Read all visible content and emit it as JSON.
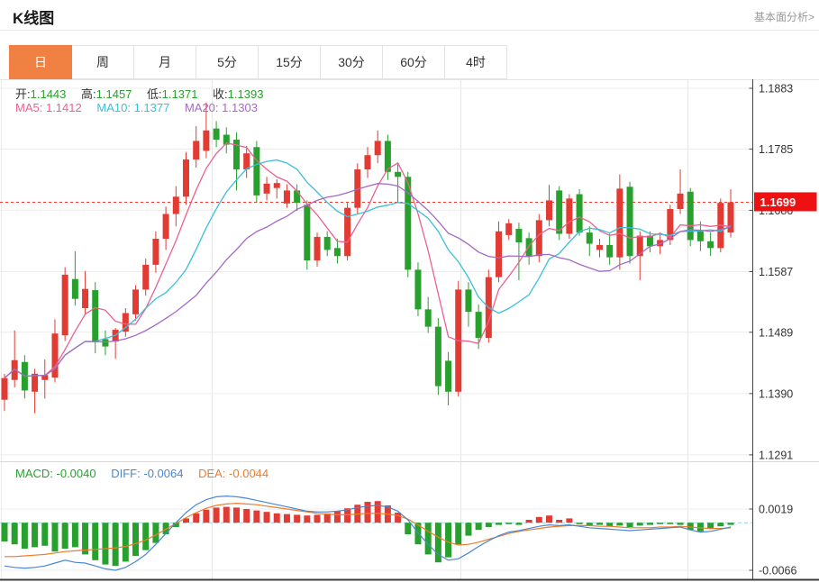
{
  "header": {
    "title": "K线图",
    "link_label": "基本面分析>"
  },
  "tabs": {
    "items": [
      {
        "label": "日",
        "active": true
      },
      {
        "label": "周",
        "active": false
      },
      {
        "label": "月",
        "active": false
      },
      {
        "label": "5分",
        "active": false
      },
      {
        "label": "15分",
        "active": false
      },
      {
        "label": "30分",
        "active": false
      },
      {
        "label": "60分",
        "active": false
      },
      {
        "label": "4时",
        "active": false
      }
    ]
  },
  "legend": {
    "ohlc": [
      {
        "label": "开:",
        "value": "1.1443"
      },
      {
        "label": "高:",
        "value": "1.1457"
      },
      {
        "label": "低:",
        "value": "1.1371"
      },
      {
        "label": "收:",
        "value": "1.1393"
      }
    ],
    "ma": [
      {
        "label": "MA5:",
        "value": "1.1412"
      },
      {
        "label": "MA10:",
        "value": "1.1377"
      },
      {
        "label": "MA20:",
        "value": "1.1303"
      }
    ],
    "macd": [
      {
        "label": "MACD:",
        "value": "-0.0040"
      },
      {
        "label": "DIFF:",
        "value": "-0.0064"
      },
      {
        "label": "DEA:",
        "value": "-0.0044"
      }
    ]
  },
  "chart_data": {
    "type": "candlestick+macd",
    "legend_position": "top-left",
    "grid": true,
    "price_axis": {
      "ticks": [
        1.1883,
        1.1785,
        1.1686,
        1.1587,
        1.1489,
        1.139,
        1.1291
      ],
      "labels": [
        "1.1883",
        "1.1785",
        "1.1686",
        "1.1587",
        "1.1489",
        "1.1390",
        "1.1291"
      ]
    },
    "macd_axis": {
      "ticks": [
        0.0019,
        -0.0066
      ],
      "labels": [
        "0.0019",
        "-0.0066"
      ]
    },
    "current_price": 1.1699,
    "current_price_label": "1.1699",
    "colors": {
      "up": "#e23b33",
      "down": "#28a02e",
      "ma5": "#ec6090",
      "ma10": "#3bbfda",
      "ma20": "#a569c4",
      "diff": "#4a87d3",
      "dea": "#ee7c2b",
      "grid": "#ececec",
      "vgrid": "#dce9f2",
      "axis": "#444444",
      "badge": "#ed1111",
      "price_line": "#e23b33",
      "zero_line": "#8ed8e6"
    },
    "candles": [
      [
        1.138,
        1.1422,
        1.1362,
        1.1415
      ],
      [
        1.1412,
        1.1492,
        1.14,
        1.1444
      ],
      [
        1.1441,
        1.1452,
        1.1382,
        1.1395
      ],
      [
        1.1393,
        1.143,
        1.1358,
        1.1422
      ],
      [
        1.1412,
        1.1445,
        1.1382,
        1.142
      ],
      [
        1.1416,
        1.151,
        1.1408,
        1.1487
      ],
      [
        1.1484,
        1.1594,
        1.1475,
        1.1582
      ],
      [
        1.1575,
        1.162,
        1.1532,
        1.1543
      ],
      [
        1.1528,
        1.1588,
        1.1518,
        1.1559
      ],
      [
        1.1557,
        1.157,
        1.1455,
        1.1473
      ],
      [
        1.1478,
        1.1492,
        1.1452,
        1.1466
      ],
      [
        1.1474,
        1.1496,
        1.1446,
        1.1493
      ],
      [
        1.149,
        1.1528,
        1.1482,
        1.152
      ],
      [
        1.1518,
        1.1565,
        1.1508,
        1.1558
      ],
      [
        1.1558,
        1.1608,
        1.1548,
        1.1598
      ],
      [
        1.1598,
        1.1652,
        1.1585,
        1.164
      ],
      [
        1.164,
        1.1692,
        1.1622,
        1.168
      ],
      [
        1.168,
        1.1725,
        1.166,
        1.1708
      ],
      [
        1.1708,
        1.178,
        1.1695,
        1.1768
      ],
      [
        1.1768,
        1.1822,
        1.1755,
        1.1798
      ],
      [
        1.1782,
        1.186,
        1.177,
        1.1815
      ],
      [
        1.1818,
        1.183,
        1.1788,
        1.18
      ],
      [
        1.1808,
        1.182,
        1.1778,
        1.1792
      ],
      [
        1.18,
        1.1812,
        1.1718,
        1.1752
      ],
      [
        1.1752,
        1.179,
        1.1738,
        1.1778
      ],
      [
        1.1788,
        1.1798,
        1.1698,
        1.171
      ],
      [
        1.1713,
        1.174,
        1.1702,
        1.1729
      ],
      [
        1.1722,
        1.1736,
        1.1705,
        1.173
      ],
      [
        1.1697,
        1.1728,
        1.169,
        1.1718
      ],
      [
        1.1718,
        1.1728,
        1.1685,
        1.1698
      ],
      [
        1.1695,
        1.1702,
        1.159,
        1.1605
      ],
      [
        1.1605,
        1.165,
        1.1595,
        1.1643
      ],
      [
        1.1643,
        1.1652,
        1.1612,
        1.1622
      ],
      [
        1.1625,
        1.164,
        1.16,
        1.1612
      ],
      [
        1.1612,
        1.1698,
        1.1605,
        1.169
      ],
      [
        1.169,
        1.1762,
        1.168,
        1.1752
      ],
      [
        1.1752,
        1.1788,
        1.1738,
        1.1775
      ],
      [
        1.1775,
        1.1815,
        1.1762,
        1.1798
      ],
      [
        1.1798,
        1.1808,
        1.1735,
        1.1748
      ],
      [
        1.1748,
        1.1762,
        1.1698,
        1.174
      ],
      [
        1.174,
        1.1748,
        1.1578,
        1.159
      ],
      [
        1.159,
        1.1602,
        1.1515,
        1.1526
      ],
      [
        1.1526,
        1.1546,
        1.1488,
        1.1498
      ],
      [
        1.1498,
        1.1512,
        1.1388,
        1.1402
      ],
      [
        1.1443,
        1.1457,
        1.1371,
        1.1393
      ],
      [
        1.1393,
        1.1572,
        1.1385,
        1.1558
      ],
      [
        1.1558,
        1.157,
        1.1498,
        1.1522
      ],
      [
        1.1522,
        1.1534,
        1.1462,
        1.148
      ],
      [
        1.148,
        1.159,
        1.1472,
        1.1578
      ],
      [
        1.1578,
        1.1668,
        1.157,
        1.1652
      ],
      [
        1.1646,
        1.1672,
        1.1638,
        1.1665
      ],
      [
        1.1656,
        1.1666,
        1.1573,
        1.1634
      ],
      [
        1.1641,
        1.165,
        1.1598,
        1.1612
      ],
      [
        1.1612,
        1.168,
        1.1602,
        1.167
      ],
      [
        1.167,
        1.1727,
        1.166,
        1.1702
      ],
      [
        1.1718,
        1.1725,
        1.1638,
        1.1648
      ],
      [
        1.1648,
        1.1712,
        1.164,
        1.1705
      ],
      [
        1.1712,
        1.172,
        1.1645,
        1.165
      ],
      [
        1.165,
        1.166,
        1.1612,
        1.1632
      ],
      [
        1.1622,
        1.164,
        1.161,
        1.163
      ],
      [
        1.163,
        1.1648,
        1.1598,
        1.161
      ],
      [
        1.161,
        1.1744,
        1.159,
        1.1721
      ],
      [
        1.1724,
        1.1732,
        1.16,
        1.1612
      ],
      [
        1.1612,
        1.1652,
        1.1573,
        1.1645
      ],
      [
        1.1645,
        1.1652,
        1.1618,
        1.1628
      ],
      [
        1.1628,
        1.165,
        1.1615,
        1.1638
      ],
      [
        1.1638,
        1.1695,
        1.163,
        1.1688
      ],
      [
        1.1688,
        1.1752,
        1.168,
        1.1713
      ],
      [
        1.1716,
        1.1722,
        1.1628,
        1.1638
      ],
      [
        1.1652,
        1.1668,
        1.162,
        1.1636
      ],
      [
        1.1636,
        1.165,
        1.1612,
        1.1625
      ],
      [
        1.1625,
        1.1705,
        1.1618,
        1.1698
      ],
      [
        1.165,
        1.172,
        1.1642,
        1.1699
      ]
    ],
    "ma_windows": [
      5,
      10,
      20
    ],
    "macd_hist": [
      -0.0026,
      -0.003,
      -0.0036,
      -0.0034,
      -0.0032,
      -0.004,
      -0.0036,
      -0.0034,
      -0.0044,
      -0.0052,
      -0.0058,
      -0.006,
      -0.0054,
      -0.0046,
      -0.0038,
      -0.0028,
      -0.0016,
      -0.0006,
      0.0006,
      0.0013,
      0.0018,
      0.0021,
      0.0022,
      0.0021,
      0.0019,
      0.0017,
      0.0015,
      0.0013,
      0.0012,
      0.0011,
      0.001,
      0.0011,
      0.0013,
      0.0016,
      0.002,
      0.0025,
      0.0029,
      0.003,
      0.0024,
      0.0014,
      -0.0016,
      -0.003,
      -0.0044,
      -0.0055,
      -0.0048,
      -0.003,
      -0.0018,
      -0.001,
      -0.0006,
      -0.0003,
      -0.0002,
      -0.0003,
      0.0004,
      0.0008,
      0.001,
      0.0004,
      0.0006,
      -0.0002,
      -0.0004,
      -0.0003,
      -0.0005,
      -0.0004,
      -0.0006,
      -0.0004,
      -0.0003,
      -0.0002,
      -0.0002,
      -0.0003,
      -0.001,
      -0.0012,
      -0.0008,
      -0.0005,
      -0.0003
    ],
    "diff": [
      -0.006,
      -0.0062,
      -0.0063,
      -0.0062,
      -0.006,
      -0.0056,
      -0.0052,
      -0.0055,
      -0.0056,
      -0.006,
      -0.0064,
      -0.0066,
      -0.0062,
      -0.0054,
      -0.0044,
      -0.003,
      -0.0015,
      0.0,
      0.0014,
      0.0025,
      0.0032,
      0.0036,
      0.0037,
      0.0036,
      0.0034,
      0.0031,
      0.0028,
      0.0025,
      0.0022,
      0.0019,
      0.0016,
      0.0015,
      0.0015,
      0.0016,
      0.0018,
      0.0021,
      0.0023,
      0.0024,
      0.0022,
      0.0016,
      0.0004,
      -0.0014,
      -0.003,
      -0.0044,
      -0.0052,
      -0.005,
      -0.0042,
      -0.0033,
      -0.0025,
      -0.0018,
      -0.0013,
      -0.0011,
      -0.0008,
      -0.0005,
      -0.0003,
      -0.0004,
      -0.0003,
      -0.0005,
      -0.0007,
      -0.0008,
      -0.0009,
      -0.001,
      -0.0011,
      -0.001,
      -0.0009,
      -0.0008,
      -0.0007,
      -0.0006,
      -0.001,
      -0.0013,
      -0.0012,
      -0.0009,
      -0.0006
    ],
    "dea": [
      -0.0047,
      -0.0047,
      -0.0046,
      -0.0045,
      -0.0044,
      -0.0042,
      -0.004,
      -0.0039,
      -0.0038,
      -0.0037,
      -0.0036,
      -0.0035,
      -0.0033,
      -0.0029,
      -0.0024,
      -0.0017,
      -0.0009,
      -0.0001,
      0.0007,
      0.0014,
      0.002,
      0.0024,
      0.0026,
      0.0027,
      0.0026,
      0.0025,
      0.0023,
      0.0021,
      0.0019,
      0.0017,
      0.0015,
      0.0013,
      0.0012,
      0.0011,
      0.0011,
      0.0012,
      0.0013,
      0.0013,
      0.0012,
      0.001,
      0.0005,
      -0.0003,
      -0.0012,
      -0.002,
      -0.0027,
      -0.0031,
      -0.003,
      -0.0027,
      -0.0023,
      -0.0019,
      -0.0015,
      -0.0012,
      -0.001,
      -0.0008,
      -0.0006,
      -0.0005,
      -0.0004,
      -0.0004,
      -0.0004,
      -0.0005,
      -0.0005,
      -0.0006,
      -0.0007,
      -0.0007,
      -0.0007,
      -0.0006,
      -0.0006,
      -0.0005,
      -0.0006,
      -0.0007,
      -0.0008,
      -0.0008,
      -0.0007
    ]
  }
}
